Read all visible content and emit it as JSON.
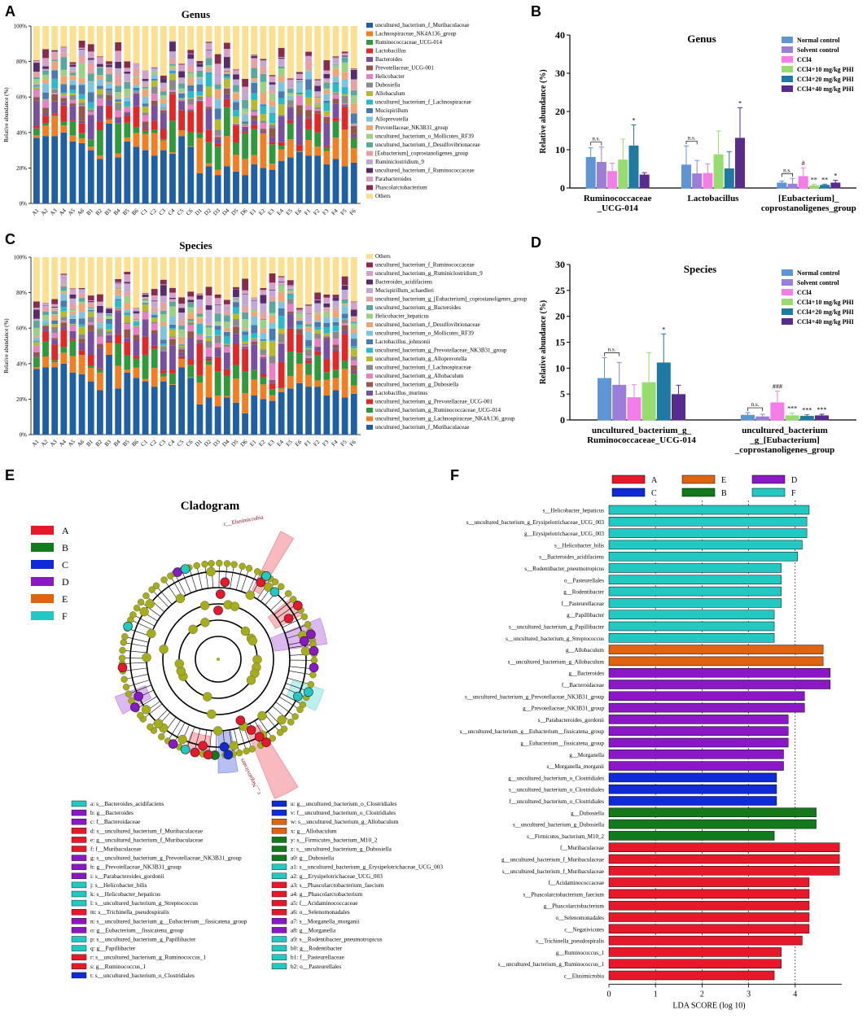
{
  "panels": [
    "A",
    "B",
    "C",
    "D",
    "E",
    "F"
  ],
  "colors": {
    "genus": [
      "#1f5fa6",
      "#f57d1f",
      "#2e9a3a",
      "#e32727",
      "#7a4fa1",
      "#93584b",
      "#ec7fc4",
      "#8a8a8a",
      "#b9ba2a",
      "#27bccb",
      "#4a7ab3",
      "#7ec3df",
      "#f4a470",
      "#9ad184",
      "#59a8a0",
      "#eba0a0",
      "#c2a8d6",
      "#5a2a6e",
      "#d8a0c8",
      "#8b2a4a",
      "#fddf90"
    ],
    "groups": {
      "A": "#e8182b",
      "B": "#137a1b",
      "C": "#0f2bd8",
      "D": "#8a18c7",
      "E": "#df6310",
      "F": "#22c9c3"
    },
    "treatment": [
      "#5e95d4",
      "#9b7ed8",
      "#f57de8",
      "#96dc6e",
      "#1f7aa3",
      "#5a2b8e"
    ]
  },
  "chart_data": [
    {
      "panel": "A",
      "type": "bar",
      "title": "Genus",
      "ylabel": "Relative abundance (%)",
      "yticks": [
        "0%",
        "20%",
        "40%",
        "60%",
        "80%",
        "100%"
      ],
      "samples": [
        "A1",
        "A2",
        "A3",
        "A4",
        "A5",
        "A6",
        "B1",
        "B2",
        "B3",
        "B4",
        "B5",
        "B6",
        "C1",
        "C2",
        "C3",
        "C4",
        "C5",
        "C6",
        "D1",
        "D2",
        "D3",
        "D4",
        "D5",
        "D6",
        "E1",
        "E2",
        "E3",
        "E4",
        "E5",
        "E6",
        "F1",
        "F2",
        "F3",
        "F4",
        "F5",
        "F6"
      ],
      "base_values": [
        37,
        38,
        38,
        40,
        35,
        34,
        30,
        25,
        45,
        26,
        35,
        32,
        30,
        27,
        30,
        28,
        38,
        32,
        17,
        21,
        16,
        21,
        18,
        16,
        22,
        20,
        19,
        24,
        26,
        29,
        27,
        27,
        22,
        25,
        21,
        23
      ],
      "legend": [
        "uncultured_bacterium_f_Muribaculaceae",
        "Lachnospiraceae_NK4A136_group",
        "Ruminococcaceae_UCG-014",
        "Lactobacillus",
        "Bacteroides",
        "Prevotellaceae_UCG-001",
        "Helicobacter",
        "Dubosiella",
        "Allobaculum",
        "uncultured_bacterium_f_Lachnospiraceae",
        "Mucispirillum",
        "Alloprevotella",
        "Prevotellaceae_NK3B31_group",
        "uncultured_bacterium_o_Mollicutes_RF39",
        "uncultured_bacterium_f_Desulfovibrionaceae",
        "[Eubacterium]_coprostanoligenes_group",
        "Ruminiclostridium_9",
        "uncultured_bacterium_f_Ruminococcaceae",
        "Parabacteroides",
        "Phascolarctobacterium",
        "Others"
      ]
    },
    {
      "panel": "B",
      "type": "bar",
      "title": "Genus",
      "ylabel": "Relative abundance (%)",
      "ylim": [
        0,
        40
      ],
      "yticks": [
        "0",
        "10",
        "20",
        "30",
        "40"
      ],
      "categories": [
        "Ruminococcaceae _UCG-014",
        "Lactobacillus",
        "[Eubacterium]_ coprostanoligenes_group"
      ],
      "series": [
        {
          "name": "Normal control",
          "values": [
            8.0,
            6.0,
            1.3
          ],
          "errors": [
            2.5,
            5.0,
            0.5
          ]
        },
        {
          "name": "Solvent control",
          "values": [
            6.7,
            3.7,
            1.0
          ],
          "errors": [
            4.0,
            3.5,
            1.5
          ]
        },
        {
          "name": "CCl4",
          "values": [
            4.3,
            3.8,
            3.0
          ],
          "errors": [
            2.2,
            2.5,
            2.3
          ]
        },
        {
          "name": "CCl4+10 mg/kg PHI",
          "values": [
            7.3,
            8.7,
            0.6
          ],
          "errors": [
            5.5,
            6.2,
            0.4
          ]
        },
        {
          "name": "CCl4+20 mg/kg PHI",
          "values": [
            11.0,
            5.0,
            0.7
          ],
          "errors": [
            5.5,
            4.5,
            0.3
          ]
        },
        {
          "name": "CCl4+40 mg/kg PHI",
          "values": [
            3.4,
            13.0,
            1.3
          ],
          "errors": [
            0.6,
            8.0,
            0.7
          ]
        }
      ],
      "annotations": [
        "n.s.",
        "*",
        "n.s.",
        "*",
        "n.s.",
        "#",
        "**",
        "**",
        "*"
      ]
    },
    {
      "panel": "C",
      "type": "bar",
      "title": "Species",
      "ylabel": "Relative abundance (%)",
      "yticks": [
        "0%",
        "20%",
        "40%",
        "60%",
        "80%",
        "100%"
      ],
      "samples": [
        "A1",
        "A2",
        "A3",
        "A4",
        "A5",
        "A6",
        "B1",
        "B2",
        "B3",
        "B4",
        "B5",
        "B6",
        "C1",
        "C2",
        "C3",
        "C4",
        "C5",
        "C6",
        "D1",
        "D2",
        "D3",
        "D4",
        "D5",
        "D6",
        "E1",
        "E2",
        "E3",
        "E4",
        "E5",
        "E6",
        "F1",
        "F2",
        "F3",
        "F4",
        "F5",
        "F6"
      ],
      "base_values": [
        37,
        38,
        38,
        40,
        35,
        34,
        30,
        25,
        45,
        26,
        35,
        32,
        30,
        27,
        30,
        28,
        38,
        32,
        17,
        21,
        16,
        21,
        18,
        12,
        22,
        20,
        19,
        24,
        26,
        29,
        27,
        27,
        22,
        25,
        21,
        23
      ],
      "legend": [
        "Others",
        "uncultured_bacterium_f_Ruminococcaceae",
        "uncultured_bacterium_g_Ruminiclostridium_9",
        "Bacteroides_acidifaciens",
        "Mucispirillum_schaedleri",
        "uncultured_bacterium_g_[Eubacterium]_coprostanoligenes_group",
        "uncultured_bacterium_g_Bacteroides",
        "Helicobacter_hepaticus",
        "uncultured_bacterium_f_Desulfovibrionaceae",
        "uncultured_bacterium_o_Mollicutes_RF39",
        "Lactobacillus_johnsonii",
        "uncultured_bacterium_g_Prevotellaceae_NK3B31_group",
        "uncultured_bacterium_g_Alloprevotella",
        "uncultured_bacterium_f_Lachnospiraceae",
        "uncultured_bacterium_g_Allobaculum",
        "uncultured_bacterium_g_Dubosiella",
        "Lactobacillus_murinus",
        "uncultured_bacterium_g_Prevotellaceae_UCG-001",
        "uncultured_bacterium_g_Ruminococcaceae_UCG-014",
        "uncultured_bacterium_g_Lachnospiraceae_NK4A136_group",
        "uncultured_bacterium_f_Muribaculaceae"
      ]
    },
    {
      "panel": "D",
      "type": "bar",
      "title": "Species",
      "ylabel": "Relative abundance (%)",
      "ylim": [
        0,
        30
      ],
      "yticks": [
        "0",
        "5",
        "10",
        "15",
        "20",
        "25",
        "30"
      ],
      "categories": [
        "uncultured_bacterium_g_ Ruminococcaceae_UCG-014",
        "uncultured_bacterium _g_[Eubacterium] _coprostanoligenes_group"
      ],
      "series": [
        {
          "name": "Normal control",
          "values": [
            8.0,
            0.9
          ],
          "errors": [
            4.0,
            0.5
          ]
        },
        {
          "name": "Solvent control",
          "values": [
            6.7,
            0.6
          ],
          "errors": [
            4.4,
            0.5
          ]
        },
        {
          "name": "CCl4",
          "values": [
            4.3,
            3.3
          ],
          "errors": [
            2.5,
            2.3
          ]
        },
        {
          "name": "CCl4+10 mg/kg PHI",
          "values": [
            7.2,
            0.8
          ],
          "errors": [
            5.8,
            0.5
          ]
        },
        {
          "name": "CCl4+20 mg/kg PHI",
          "values": [
            11.0,
            0.7
          ],
          "errors": [
            5.6,
            0.3
          ]
        },
        {
          "name": "CCl4+40 mg/kg PHI",
          "values": [
            4.9,
            0.8
          ],
          "errors": [
            1.8,
            0.3
          ]
        }
      ],
      "annotations": [
        "n.s.",
        "*",
        "n.s.",
        "###",
        "***",
        "***",
        "***"
      ]
    },
    {
      "panel": "F",
      "type": "bar",
      "title": "",
      "xlabel": "LDA SCORE (log 10)",
      "xlim": [
        0,
        5
      ],
      "xticks": [
        "0",
        "1",
        "2",
        "3",
        "4"
      ],
      "groups": [
        "A",
        "B",
        "C",
        "D",
        "E",
        "F"
      ],
      "bars": [
        {
          "label": "s__Helicobacter_hepaticus",
          "group": "F",
          "value": 4.3
        },
        {
          "label": "s__uncultured_bacterium_g_Erysipelotrichaceae_UCG_003",
          "group": "F",
          "value": 4.25
        },
        {
          "label": "g__Erysipelotrichaceae_UCG_003",
          "group": "F",
          "value": 4.25
        },
        {
          "label": "s__Helicobacter_bilis",
          "group": "F",
          "value": 4.15
        },
        {
          "label": "s__Bacteroides_acidifaciens",
          "group": "F",
          "value": 4.05
        },
        {
          "label": "s__Rodentibacter_pneumotropicus",
          "group": "F",
          "value": 3.7
        },
        {
          "label": "o__Pasteurellales",
          "group": "F",
          "value": 3.7
        },
        {
          "label": "g__Rodentibacter",
          "group": "F",
          "value": 3.7
        },
        {
          "label": "f__Pasteurellaceae",
          "group": "F",
          "value": 3.7
        },
        {
          "label": "g__Papillibacter",
          "group": "F",
          "value": 3.55
        },
        {
          "label": "s__uncultured_bacterium_g_Papillibacter",
          "group": "F",
          "value": 3.55
        },
        {
          "label": "s__uncultured_bacterium_g_Streptococcus",
          "group": "F",
          "value": 3.55
        },
        {
          "label": "g__Allobaculum",
          "group": "E",
          "value": 4.6
        },
        {
          "label": "s__uncultured_bacterium_g_Allobaculum",
          "group": "E",
          "value": 4.6
        },
        {
          "label": "g__Bacteroides",
          "group": "D",
          "value": 4.75
        },
        {
          "label": "f__Bacteroidaceae",
          "group": "D",
          "value": 4.75
        },
        {
          "label": "s__uncultured_bacterium_g_Prevotellaceae_NK3B31_group",
          "group": "D",
          "value": 4.2
        },
        {
          "label": "g__Prevotellaceae_NK3B31_group",
          "group": "D",
          "value": 4.2
        },
        {
          "label": "s__Parabacteroides_gordonii",
          "group": "D",
          "value": 3.85
        },
        {
          "label": "s__uncultured_bacterium_g__Eubacterium__fissicatena_group",
          "group": "D",
          "value": 3.85
        },
        {
          "label": "g__Eubacterium__fissicatena_group",
          "group": "D",
          "value": 3.85
        },
        {
          "label": "g__Morganella",
          "group": "D",
          "value": 3.75
        },
        {
          "label": "s__Morganella_morganii",
          "group": "D",
          "value": 3.75
        },
        {
          "label": "g__uncultured_bacterium_o_Clostridiales",
          "group": "C",
          "value": 3.6
        },
        {
          "label": "s__uncultured_bacterium_o_Clostridiales",
          "group": "C",
          "value": 3.6
        },
        {
          "label": "f__uncultured_bacterium_o_Clostridiales",
          "group": "C",
          "value": 3.6
        },
        {
          "label": "g__Dubosiella",
          "group": "B",
          "value": 4.45
        },
        {
          "label": "s__uncultured_bacterium_g_Dubosiella",
          "group": "B",
          "value": 4.45
        },
        {
          "label": "s__Firmicutes_bacterium_M10_2",
          "group": "B",
          "value": 3.55
        },
        {
          "label": "f__Muribaculaceae",
          "group": "A",
          "value": 4.95
        },
        {
          "label": "g__uncultured_bacterium_f_Muribaculaceae",
          "group": "A",
          "value": 4.95
        },
        {
          "label": "s__uncultured_bacterium_f_Muribaculaceae",
          "group": "A",
          "value": 4.95
        },
        {
          "label": "f__Acidaminococcaceae",
          "group": "A",
          "value": 4.3
        },
        {
          "label": "s__Phascolarctobacterium_faecium",
          "group": "A",
          "value": 4.3
        },
        {
          "label": "g__Phascolarctobacterium",
          "group": "A",
          "value": 4.3
        },
        {
          "label": "o__Selenomonadales",
          "group": "A",
          "value": 4.3
        },
        {
          "label": "c__Negativicutes",
          "group": "A",
          "value": 4.3
        },
        {
          "label": "s__Trichinella_pseudospiralis",
          "group": "A",
          "value": 4.15
        },
        {
          "label": "g__Ruminococcus_1",
          "group": "A",
          "value": 3.7
        },
        {
          "label": "s__uncultured_bacterium_g_Ruminococcus_1",
          "group": "A",
          "value": 3.7
        },
        {
          "label": "c__Elusimicrobia",
          "group": "A",
          "value": 3.55
        }
      ]
    }
  ],
  "cladogram": {
    "title": "Cladogram",
    "groups": [
      "A",
      "B",
      "C",
      "D",
      "E",
      "F"
    ],
    "ray_labels": [
      "c__Elusimicrobia",
      "c__Negativicutes"
    ],
    "legend": [
      {
        "label": "a: s__Bacteroides_acidifaciens",
        "group": "F"
      },
      {
        "label": "b: g__Bacteroides",
        "group": "D"
      },
      {
        "label": "c: f__Bacteroidaceae",
        "group": "D"
      },
      {
        "label": "d: s__uncultured_bacterium_f_Muribaculaceae",
        "group": "A"
      },
      {
        "label": "e: g__uncultured_bacterium_f_Muribaculaceae",
        "group": "A"
      },
      {
        "label": "f: f__Muribaculaceae",
        "group": "A"
      },
      {
        "label": "g: s__uncultured_bacterium_g_Prevotellaceae_NK3B31_group",
        "group": "D"
      },
      {
        "label": "h: g__Prevotellaceae_NK3B31_group",
        "group": "D"
      },
      {
        "label": "i: s__Parabacteroides_gordonii",
        "group": "D"
      },
      {
        "label": "j: s__Helicobacter_bilis",
        "group": "F"
      },
      {
        "label": "k: s__Helicobacter_hepaticus",
        "group": "F"
      },
      {
        "label": "l: s__uncultured_bacterium_g_Streptococcus",
        "group": "F"
      },
      {
        "label": "m: s__Trichinella_pseudospiralis",
        "group": "A"
      },
      {
        "label": "n: s__uncultured_bacterium_g__Eubacterium__fissicatena_group",
        "group": "D"
      },
      {
        "label": "o: g__Eubacterium__fissicatena_group",
        "group": "D"
      },
      {
        "label": "p: s__uncultured_bacterium_g_Papillibacter",
        "group": "F"
      },
      {
        "label": "q: g__Papillibacter",
        "group": "F"
      },
      {
        "label": "r: s__uncultured_bacterium_g_Ruminococcus_1",
        "group": "A"
      },
      {
        "label": "s: g__Ruminococcus_1",
        "group": "A"
      },
      {
        "label": "t: s__uncultured_bacterium_o_Clostridiales",
        "group": "C"
      },
      {
        "label": "u: g__uncultured_bacterium_o_Clostridiales",
        "group": "C"
      },
      {
        "label": "v: f__uncultured_bacterium_o_Clostridiales",
        "group": "C"
      },
      {
        "label": "w: s__uncultured_bacterium_g_Allobaculum",
        "group": "E"
      },
      {
        "label": "x: g__Allobaculum",
        "group": "E"
      },
      {
        "label": "y: s__Firmicutes_bacterium_M10_2",
        "group": "B"
      },
      {
        "label": "z: s__uncultured_bacterium_g_Dubosiella",
        "group": "B"
      },
      {
        "label": "a0: g__Dubosiella",
        "group": "B"
      },
      {
        "label": "a1: s__uncultured_bacterium_g_Erysipelotrichaceae_UCG_003",
        "group": "F"
      },
      {
        "label": "a2: g__Erysipelotrichaceae_UCG_003",
        "group": "F"
      },
      {
        "label": "a3: s__Phascolarctobacterium_faecium",
        "group": "A"
      },
      {
        "label": "a4: g__Phascolarctobacterium",
        "group": "A"
      },
      {
        "label": "a5: f__Acidaminococcaceae",
        "group": "A"
      },
      {
        "label": "a6: o__Selenomonadales",
        "group": "A"
      },
      {
        "label": "a7: s__Morganella_morganii",
        "group": "D"
      },
      {
        "label": "a8: g__Morganella",
        "group": "D"
      },
      {
        "label": "a9: s__Rodentibacter_pneumotropicus",
        "group": "F"
      },
      {
        "label": "b0: g__Rodentibacter",
        "group": "F"
      },
      {
        "label": "b1: f__Pasteurellaceae",
        "group": "F"
      },
      {
        "label": "b2: o__Pasteurellales",
        "group": "F"
      }
    ]
  }
}
